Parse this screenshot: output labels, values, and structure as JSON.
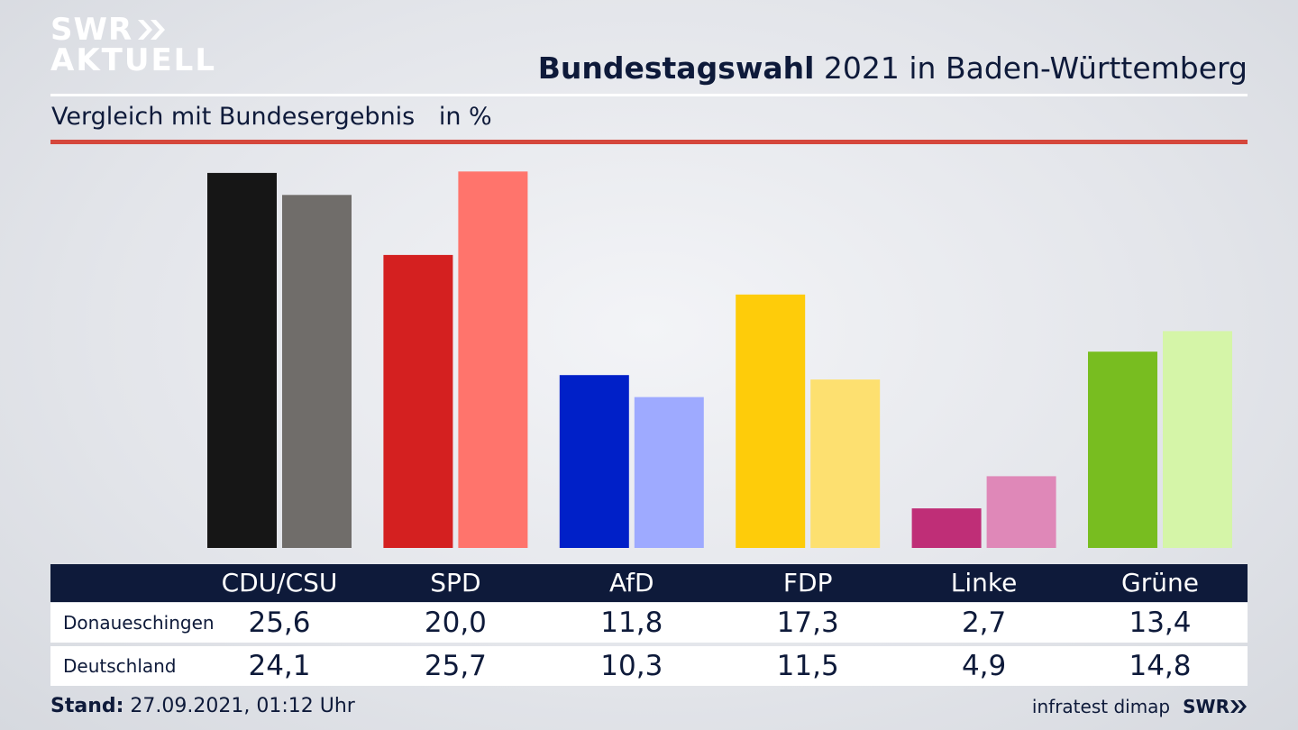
{
  "logo": {
    "line1": "SWR",
    "line2": "AKTUELL"
  },
  "header": {
    "title_bold": "Bundestagswahl",
    "title_rest": "2021 in Baden-Württemberg"
  },
  "subheader": {
    "text": "Vergleich mit Bundesergebnis",
    "unit": "in %"
  },
  "colors": {
    "accent_red": "#d5473c",
    "navy": "#0e1a3a"
  },
  "chart_data": {
    "type": "bar",
    "categories": [
      "CDU/CSU",
      "SPD",
      "AfD",
      "FDP",
      "Linke",
      "Grüne"
    ],
    "series": [
      {
        "name": "Donaueschingen",
        "values": [
          25.6,
          20.0,
          11.8,
          17.3,
          2.7,
          13.4
        ],
        "colors": [
          "#161616",
          "#d42020",
          "#0020c8",
          "#fecc0a",
          "#bf2e77",
          "#78bd20"
        ]
      },
      {
        "name": "Deutschland",
        "values": [
          24.1,
          25.7,
          10.3,
          11.5,
          4.9,
          14.8
        ],
        "colors": [
          "#706d6a",
          "#ff746c",
          "#9eaaff",
          "#fde070",
          "#df88b8",
          "#d5f5a8"
        ]
      }
    ],
    "value_labels": [
      [
        "25,6",
        "20,0",
        "11,8",
        "17,3",
        "2,7",
        "13,4"
      ],
      [
        "24,1",
        "25,7",
        "10,3",
        "11,5",
        "4,9",
        "14,8"
      ]
    ],
    "ylim": [
      0,
      25.9
    ],
    "grid": false,
    "xlabel": "",
    "ylabel": ""
  },
  "footer": {
    "stand_label": "Stand:",
    "stand_value": "27.09.2021, 01:12 Uhr",
    "source": "infratest dimap",
    "brand": "SWR"
  }
}
